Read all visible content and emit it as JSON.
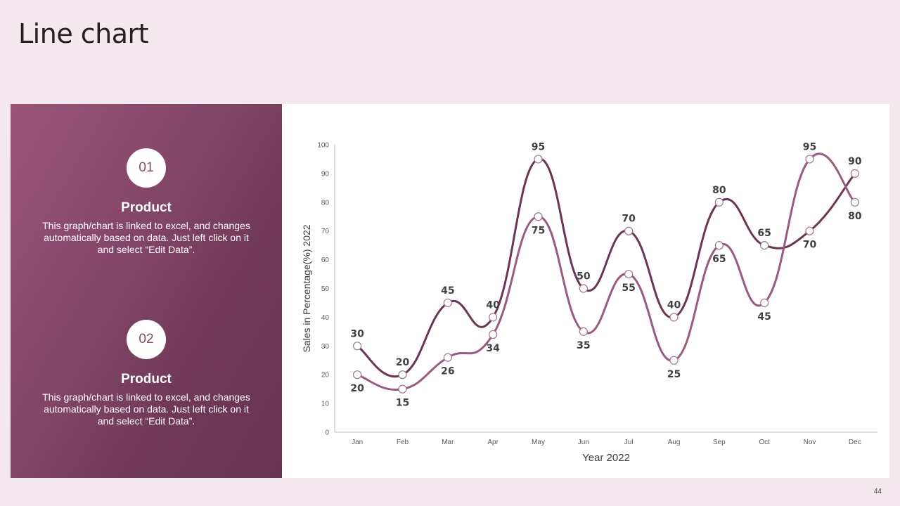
{
  "slide": {
    "title": "Line chart",
    "page_number": "44"
  },
  "left_panel": {
    "items": [
      {
        "number": "01",
        "title": "Product",
        "description": "This graph/chart is linked to excel, and changes automatically based on data. Just left click on it and select “Edit Data”."
      },
      {
        "number": "02",
        "title": "Product",
        "description": "This graph/chart is linked to excel, and changes automatically based on data. Just left click on it and select “Edit Data”."
      }
    ]
  },
  "colors": {
    "panel_gradient": [
      "#9a5478",
      "#663351"
    ],
    "series_dark": "#6e3454",
    "series_light": "#9a5a80",
    "background": "#f5e9f0"
  },
  "chart_data": {
    "type": "line",
    "smooth": true,
    "xlabel": "Year 2022",
    "ylabel": "Sales in Percentage(%) 2022",
    "categories": [
      "Jan",
      "Feb",
      "Mar",
      "Apr",
      "May",
      "Jun",
      "Jul",
      "Aug",
      "Sep",
      "Oct",
      "Nov",
      "Dec"
    ],
    "ylim": [
      0,
      100
    ],
    "yticks": [
      0,
      10,
      20,
      30,
      40,
      50,
      60,
      70,
      80,
      90,
      100
    ],
    "grid": false,
    "legend": false,
    "data_labels": true,
    "series": [
      {
        "color": "#6e3454",
        "values": [
          30,
          20,
          45,
          40,
          95,
          50,
          70,
          40,
          80,
          65,
          70,
          90
        ]
      },
      {
        "color": "#9a5a80",
        "values": [
          20,
          15,
          26,
          34,
          75,
          35,
          55,
          25,
          65,
          45,
          95,
          80
        ]
      }
    ]
  }
}
